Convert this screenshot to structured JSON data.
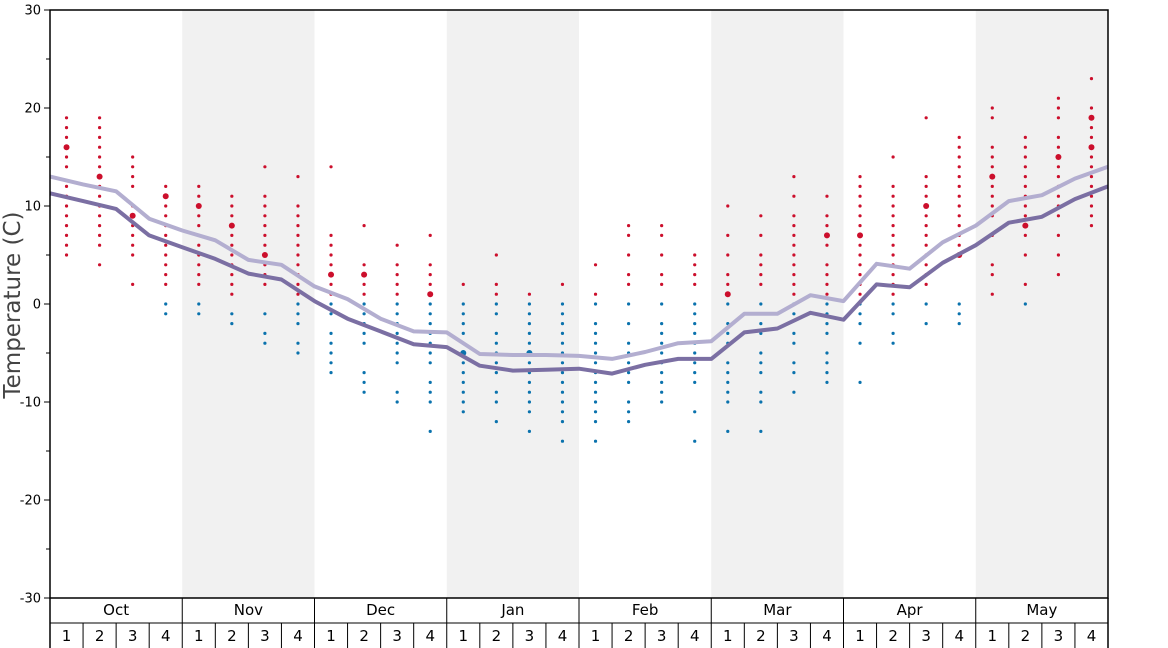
{
  "chart_data": {
    "type": "scatter",
    "title": "",
    "ylabel": "Temperature (C)",
    "ylim": [
      -30,
      30
    ],
    "y_ticks": [
      30,
      20,
      10,
      0,
      -10,
      -20,
      -30
    ],
    "y_tick_labels": [
      "30",
      "20",
      "10",
      "0",
      "-10",
      "-20",
      "-30"
    ],
    "months": [
      "Oct",
      "Nov",
      "Dec",
      "Jan",
      "Feb",
      "Mar",
      "Apr",
      "May"
    ],
    "weeks": [
      "1",
      "2",
      "3",
      "4"
    ],
    "shaded_months": [
      "Nov",
      "Jan",
      "Mar",
      "May"
    ],
    "colors": {
      "warm_points": "#cc0f2c",
      "cold_points": "#0a72ad",
      "line_high": "#b3aed0",
      "line_low": "#7b6fa3",
      "shade": "#f1f1f1"
    },
    "series": [
      {
        "values": [
          13.0,
          12.2,
          11.5,
          8.7,
          7.5,
          6.5,
          4.5,
          4.0,
          1.8,
          0.5,
          -1.5,
          -2.8,
          -2.9,
          -5.1,
          -5.2,
          -5.2,
          -5.3,
          -5.6,
          -4.9,
          -4.0,
          -3.8,
          -1.0,
          -1.0,
          0.9,
          0.3,
          4.1,
          3.6,
          6.3,
          8.0,
          10.5,
          11.1,
          12.8,
          14.0
        ]
      },
      {
        "values": [
          11.3,
          10.5,
          9.7,
          7.0,
          5.8,
          4.6,
          3.1,
          2.5,
          0.3,
          -1.5,
          -2.8,
          -4.1,
          -4.4,
          -6.3,
          -6.8,
          -6.7,
          -6.6,
          -7.1,
          -6.2,
          -5.6,
          -5.6,
          -2.9,
          -2.5,
          -0.9,
          -1.6,
          2.0,
          1.7,
          4.2,
          6.0,
          8.3,
          8.9,
          10.7,
          12.0
        ]
      }
    ],
    "points": [
      {
        "w": 1,
        "temps": [
          19,
          18,
          17,
          16,
          16,
          15,
          14,
          12,
          11,
          10,
          9,
          8,
          7,
          6,
          5
        ]
      },
      {
        "w": 2,
        "temps": [
          19,
          18,
          17,
          16,
          15,
          14,
          13,
          13,
          12,
          11,
          10,
          9,
          8,
          7,
          6,
          4
        ]
      },
      {
        "w": 3,
        "temps": [
          15,
          14,
          13,
          12,
          10,
          9,
          9,
          8,
          7,
          6,
          5,
          2
        ]
      },
      {
        "w": 4,
        "temps": [
          12,
          11,
          11,
          10,
          9,
          8,
          7,
          6,
          5,
          4,
          3,
          2,
          0,
          -1
        ]
      },
      {
        "w": 5,
        "temps": [
          12,
          11,
          10,
          10,
          9,
          8,
          7,
          6,
          5,
          4,
          3,
          2,
          0,
          -1
        ]
      },
      {
        "w": 6,
        "temps": [
          11,
          10,
          9,
          8,
          8,
          7,
          6,
          5,
          4,
          3,
          2,
          1,
          -1,
          -2
        ]
      },
      {
        "w": 7,
        "temps": [
          14,
          11,
          10,
          9,
          8,
          7,
          6,
          5,
          5,
          4,
          3,
          2,
          -1,
          -3,
          -4
        ]
      },
      {
        "w": 8,
        "temps": [
          13,
          10,
          9,
          8,
          7,
          6,
          5,
          4,
          3,
          2,
          1,
          0,
          -1,
          -2,
          -4,
          -5
        ]
      },
      {
        "w": 9,
        "temps": [
          14,
          7,
          6,
          5,
          4,
          3,
          3,
          2,
          1,
          0,
          -1,
          -3,
          -4,
          -5,
          -6,
          -7
        ]
      },
      {
        "w": 10,
        "temps": [
          8,
          4,
          3,
          3,
          2,
          1,
          0,
          -1,
          -2,
          -3,
          -4,
          -7,
          -8,
          -9
        ]
      },
      {
        "w": 11,
        "temps": [
          6,
          4,
          3,
          2,
          1,
          0,
          -1,
          -2,
          -3,
          -4,
          -5,
          -6,
          -9,
          -10
        ]
      },
      {
        "w": 12,
        "temps": [
          7,
          4,
          3,
          2,
          1,
          1,
          0,
          -1,
          -2,
          -3,
          -4,
          -5,
          -6,
          -8,
          -9,
          -10,
          -13
        ]
      },
      {
        "w": 13,
        "temps": [
          2,
          0,
          -1,
          -2,
          -3,
          -4,
          -5,
          -5,
          -6,
          -7,
          -8,
          -9,
          -10,
          -11
        ]
      },
      {
        "w": 14,
        "temps": [
          5,
          2,
          1,
          0,
          -1,
          -3,
          -4,
          -5,
          -6,
          -7,
          -9,
          -10,
          -12
        ]
      },
      {
        "w": 15,
        "temps": [
          1,
          0,
          -1,
          -2,
          -3,
          -4,
          -5,
          -5,
          -6,
          -7,
          -8,
          -9,
          -10,
          -11,
          -13
        ]
      },
      {
        "w": 16,
        "temps": [
          2,
          0,
          -1,
          -2,
          -3,
          -4,
          -5,
          -6,
          -7,
          -8,
          -9,
          -10,
          -11,
          -12,
          -14
        ]
      },
      {
        "w": 17,
        "temps": [
          4,
          1,
          0,
          -2,
          -3,
          -4,
          -5,
          -6,
          -7,
          -8,
          -9,
          -10,
          -11,
          -12,
          -14
        ]
      },
      {
        "w": 18,
        "temps": [
          8,
          7,
          5,
          3,
          2,
          0,
          -2,
          -4,
          -5,
          -6,
          -7,
          -8,
          -10,
          -11,
          -12
        ]
      },
      {
        "w": 19,
        "temps": [
          8,
          7,
          5,
          3,
          2,
          0,
          -2,
          -3,
          -4,
          -5,
          -6,
          -7,
          -8,
          -9,
          -10
        ]
      },
      {
        "w": 20,
        "temps": [
          5,
          4,
          3,
          2,
          0,
          -1,
          -2,
          -3,
          -4,
          -5,
          -6,
          -7,
          -8,
          -11,
          -14
        ]
      },
      {
        "w": 21,
        "temps": [
          10,
          7,
          5,
          3,
          2,
          1,
          1,
          0,
          -2,
          -3,
          -4,
          -6,
          -7,
          -8,
          -9,
          -10,
          -13
        ]
      },
      {
        "w": 22,
        "temps": [
          9,
          7,
          5,
          4,
          3,
          2,
          0,
          -1,
          -2,
          -3,
          -5,
          -6,
          -7,
          -9,
          -10,
          -13
        ]
      },
      {
        "w": 23,
        "temps": [
          13,
          11,
          9,
          8,
          7,
          6,
          5,
          4,
          3,
          2,
          1,
          0,
          -1,
          -3,
          -4,
          -6,
          -7,
          -9
        ]
      },
      {
        "w": 24,
        "temps": [
          11,
          9,
          8,
          7,
          7,
          6,
          4,
          3,
          2,
          1,
          0,
          -1,
          -2,
          -3,
          -5,
          -6,
          -7,
          -8
        ]
      },
      {
        "w": 25,
        "temps": [
          13,
          12,
          11,
          10,
          9,
          8,
          7,
          7,
          6,
          5,
          4,
          3,
          2,
          1,
          0,
          -1,
          -2,
          -4,
          -8
        ]
      },
      {
        "w": 26,
        "temps": [
          15,
          12,
          11,
          10,
          9,
          8,
          7,
          6,
          5,
          4,
          3,
          2,
          1,
          0,
          -1,
          -3,
          -4
        ]
      },
      {
        "w": 27,
        "temps": [
          19,
          13,
          12,
          11,
          10,
          10,
          9,
          8,
          7,
          6,
          5,
          4,
          3,
          2,
          0,
          -2
        ]
      },
      {
        "w": 28,
        "temps": [
          17,
          16,
          15,
          14,
          13,
          12,
          11,
          10,
          9,
          8,
          7,
          6,
          5,
          5,
          0,
          -1,
          -2
        ]
      },
      {
        "w": 29,
        "temps": [
          20,
          19,
          16,
          15,
          14,
          13,
          13,
          12,
          11,
          10,
          9,
          7,
          4,
          3,
          1
        ]
      },
      {
        "w": 30,
        "temps": [
          17,
          16,
          15,
          14,
          13,
          12,
          11,
          10,
          9,
          8,
          8,
          7,
          5,
          2,
          0
        ]
      },
      {
        "w": 31,
        "temps": [
          21,
          20,
          19,
          17,
          16,
          15,
          15,
          14,
          13,
          12,
          11,
          10,
          9,
          7,
          5,
          3
        ]
      },
      {
        "w": 32,
        "temps": [
          23,
          20,
          19,
          19,
          18,
          17,
          16,
          16,
          15,
          14,
          13,
          12,
          11,
          10,
          9,
          8
        ]
      }
    ]
  }
}
